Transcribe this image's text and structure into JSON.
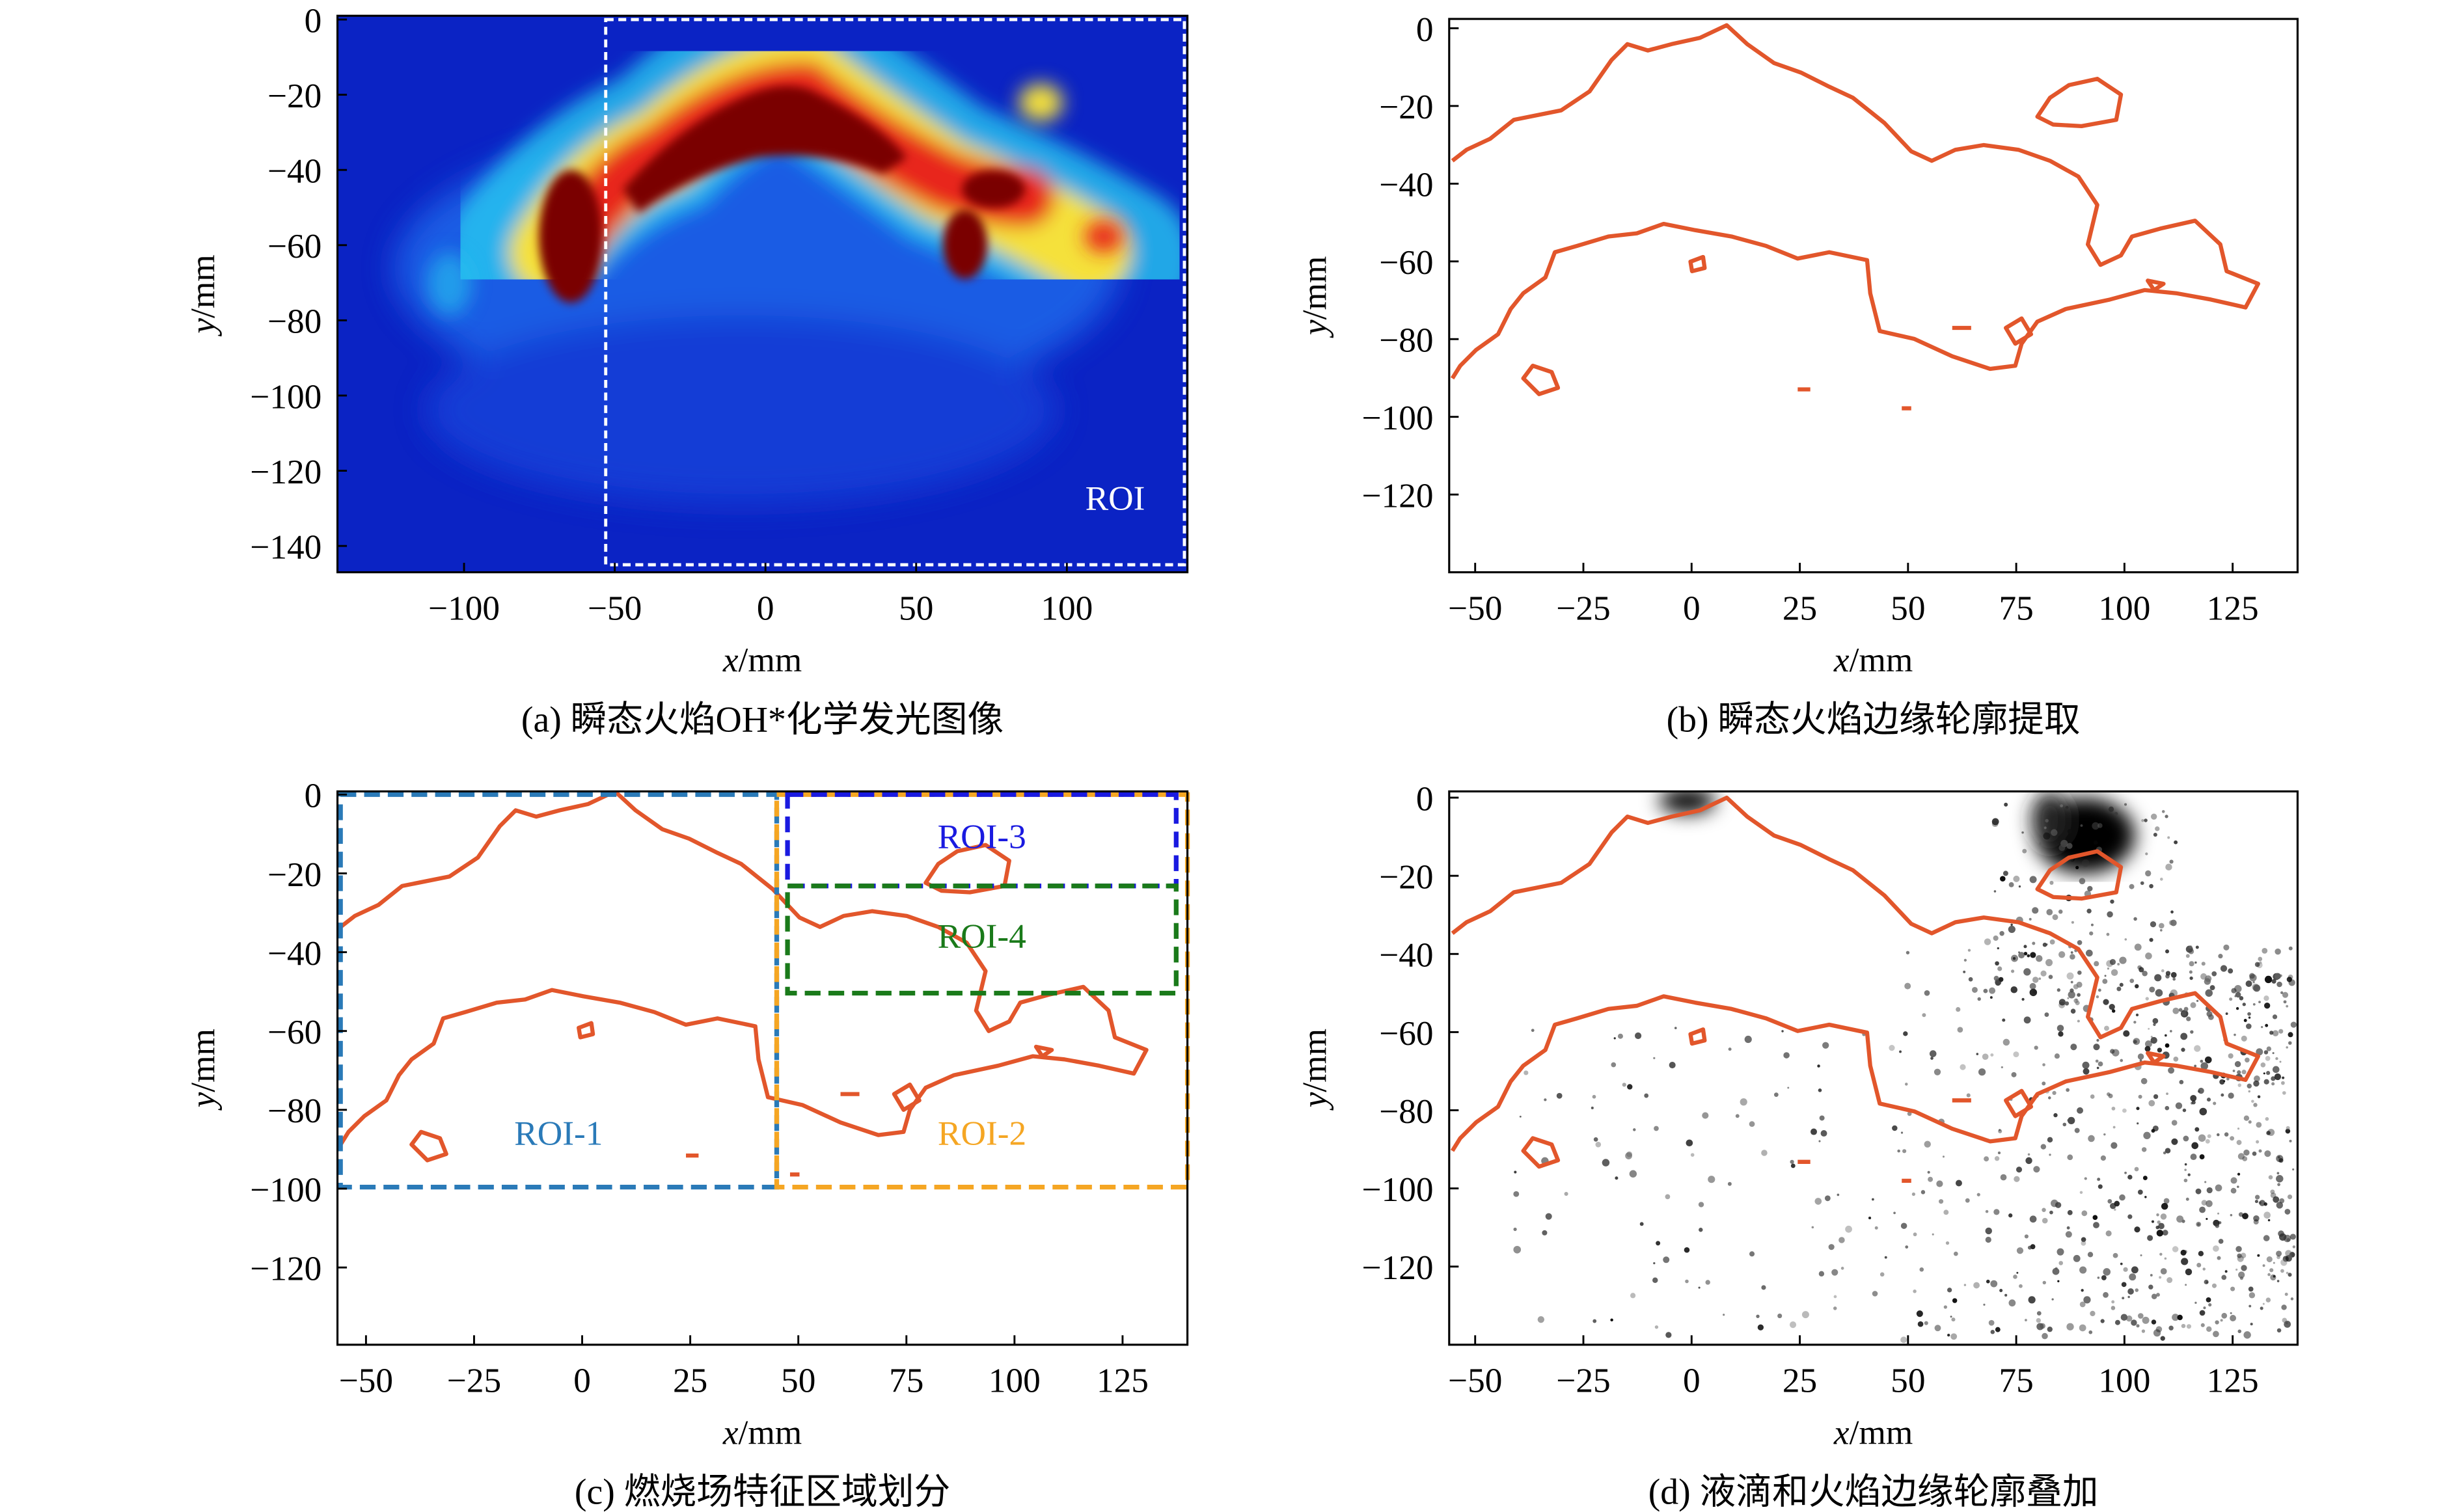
{
  "chart_data": [
    {
      "type": "image",
      "caption": "(a) 瞬态火焰OH*化学发光图像",
      "xlabel": "x/mm",
      "ylabel": "y/mm",
      "xlim": [
        -142,
        140
      ],
      "ylim": [
        -147,
        1
      ],
      "xticks": [
        {
          "value": -100,
          "label": "−100"
        },
        {
          "value": -50,
          "label": "−50"
        },
        0,
        50,
        100
      ],
      "yticks": [
        0,
        {
          "value": -20,
          "label": "−20"
        },
        {
          "value": -40,
          "label": "−40"
        },
        {
          "value": -60,
          "label": "−60"
        },
        {
          "value": -80,
          "label": "−80"
        },
        {
          "value": -100,
          "label": "−100"
        },
        {
          "value": -120,
          "label": "−120"
        },
        {
          "value": -140,
          "label": "−140"
        }
      ],
      "regions": [
        {
          "label": "ROI",
          "color": "#ffffff",
          "xlim": [
            -53,
            139
          ],
          "ylim": [
            -145,
            0
          ]
        }
      ]
    },
    {
      "type": "image",
      "caption": "(b) 瞬态火焰边缘轮廓提取",
      "xlabel": "x/mm",
      "ylabel": "y/mm",
      "xlim": [
        -56,
        140
      ],
      "ylim": [
        -140,
        2.4
      ],
      "contour_color": "#e2562b",
      "xticks": [
        {
          "value": -50,
          "label": "−50"
        },
        {
          "value": -25,
          "label": "−25"
        },
        0,
        25,
        50,
        75,
        100,
        125
      ],
      "yticks": [
        0,
        {
          "value": -20,
          "label": "−20"
        },
        {
          "value": -40,
          "label": "−40"
        },
        {
          "value": -60,
          "label": "−60"
        },
        {
          "value": -80,
          "label": "−80"
        },
        {
          "value": -100,
          "label": "−100"
        },
        {
          "value": -120,
          "label": "−120"
        }
      ]
    },
    {
      "type": "image",
      "caption": "(c) 燃烧场特征区域划分",
      "xlabel": "x/mm",
      "ylabel": "y/mm",
      "xlim": [
        -56.6,
        140
      ],
      "ylim": [
        -139.6,
        0.8
      ],
      "contour_color": "#e2562b",
      "xticks": [
        {
          "value": -50,
          "label": "−50"
        },
        {
          "value": -25,
          "label": "−25"
        },
        0,
        25,
        50,
        75,
        100,
        125
      ],
      "yticks": [
        0,
        {
          "value": -20,
          "label": "−20"
        },
        {
          "value": -40,
          "label": "−40"
        },
        {
          "value": -60,
          "label": "−60"
        },
        {
          "value": -80,
          "label": "−80"
        },
        {
          "value": -100,
          "label": "−100"
        },
        {
          "value": -120,
          "label": "−120"
        }
      ],
      "regions": [
        {
          "label": "ROI-1",
          "color": "#2a7ab8",
          "xlim": [
            -55.9,
            45
          ],
          "ylim": [
            -99.6,
            0
          ]
        },
        {
          "label": "ROI-2",
          "color": "#f5a623",
          "xlim": [
            45,
            140
          ],
          "ylim": [
            -99.6,
            0
          ]
        },
        {
          "label": "ROI-3",
          "color": "#1a1ae0",
          "xlim": [
            47.5,
            137.4
          ],
          "ylim": [
            -23.2,
            0
          ]
        },
        {
          "label": "ROI-4",
          "color": "#1a7a1a",
          "xlim": [
            47.5,
            137.4
          ],
          "ylim": [
            -50.4,
            -23.2
          ]
        }
      ]
    },
    {
      "type": "image",
      "caption": "(d) 液滴和火焰边缘轮廓叠加",
      "xlabel": "x/mm",
      "ylabel": "y/mm",
      "xlim": [
        -56,
        140
      ],
      "ylim": [
        -140,
        1.6
      ],
      "contour_color": "#e2562b",
      "xticks": [
        {
          "value": -50,
          "label": "−50"
        },
        {
          "value": -25,
          "label": "−25"
        },
        0,
        25,
        50,
        75,
        100,
        125
      ],
      "yticks": [
        0,
        {
          "value": -20,
          "label": "−20"
        },
        {
          "value": -40,
          "label": "−40"
        },
        {
          "value": -60,
          "label": "−60"
        },
        {
          "value": -80,
          "label": "−80"
        },
        {
          "value": -100,
          "label": "−100"
        },
        {
          "value": -120,
          "label": "−120"
        }
      ]
    }
  ]
}
